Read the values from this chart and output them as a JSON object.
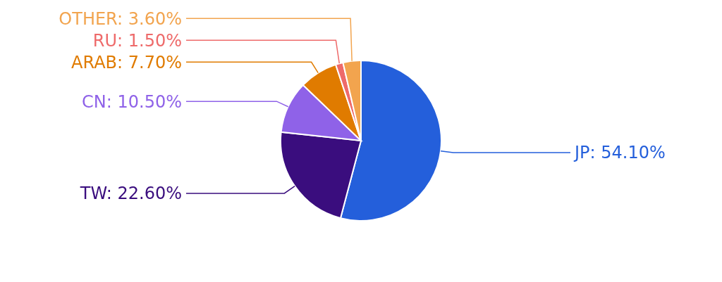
{
  "chart_data": {
    "type": "pie",
    "categories": [
      "JP",
      "TW",
      "CN",
      "ARAB",
      "RU",
      "OTHER"
    ],
    "values": [
      54.1,
      22.6,
      10.5,
      7.7,
      1.5,
      3.6
    ],
    "colors": [
      "#245fdb",
      "#3a0d7e",
      "#8f62e8",
      "#e07b00",
      "#ee6a6a",
      "#f2a44e"
    ],
    "value_labels": [
      "54.10%",
      "22.60%",
      "10.50%",
      "7.70%",
      "1.50%",
      "3.60%"
    ]
  }
}
